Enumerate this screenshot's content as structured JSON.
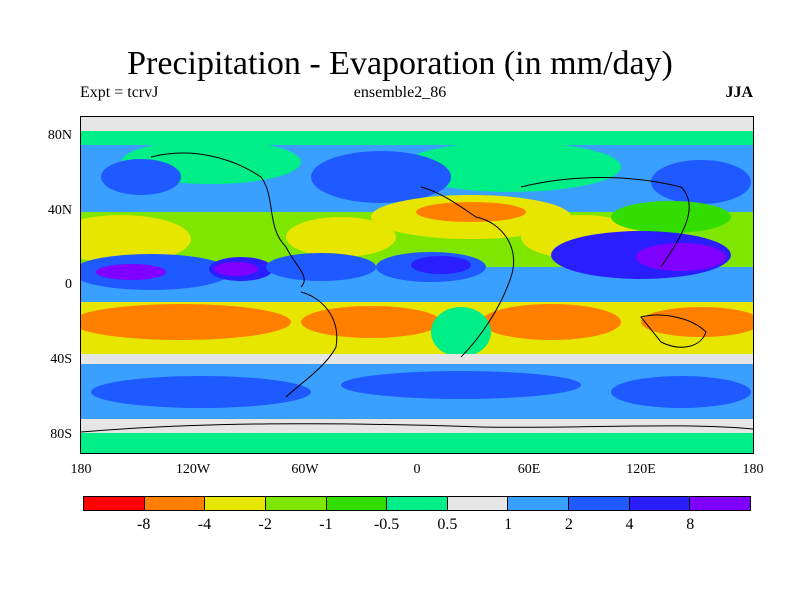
{
  "title": "Precipitation - Evaporation (in mm/day)",
  "subtitle_left": "Expt = tcrvJ",
  "subtitle_center": "ensemble2_86",
  "subtitle_right": "JJA",
  "y_ticks": [
    "80N",
    "40N",
    "0",
    "40S",
    "80S"
  ],
  "x_ticks": [
    "180",
    "120W",
    "60W",
    "0",
    "60E",
    "120E",
    "180"
  ],
  "colorbar": {
    "colors": [
      "#ff0000",
      "#ff7f00",
      "#e6e600",
      "#7fe600",
      "#33dd00",
      "#00ee88",
      "#e6e6e6",
      "#3aa0ff",
      "#1e5aff",
      "#2a1eff",
      "#8000ff"
    ],
    "labels": [
      "-8",
      "-4",
      "-2",
      "-1",
      "-0.5",
      "0.5",
      "1",
      "2",
      "4",
      "8"
    ]
  }
}
